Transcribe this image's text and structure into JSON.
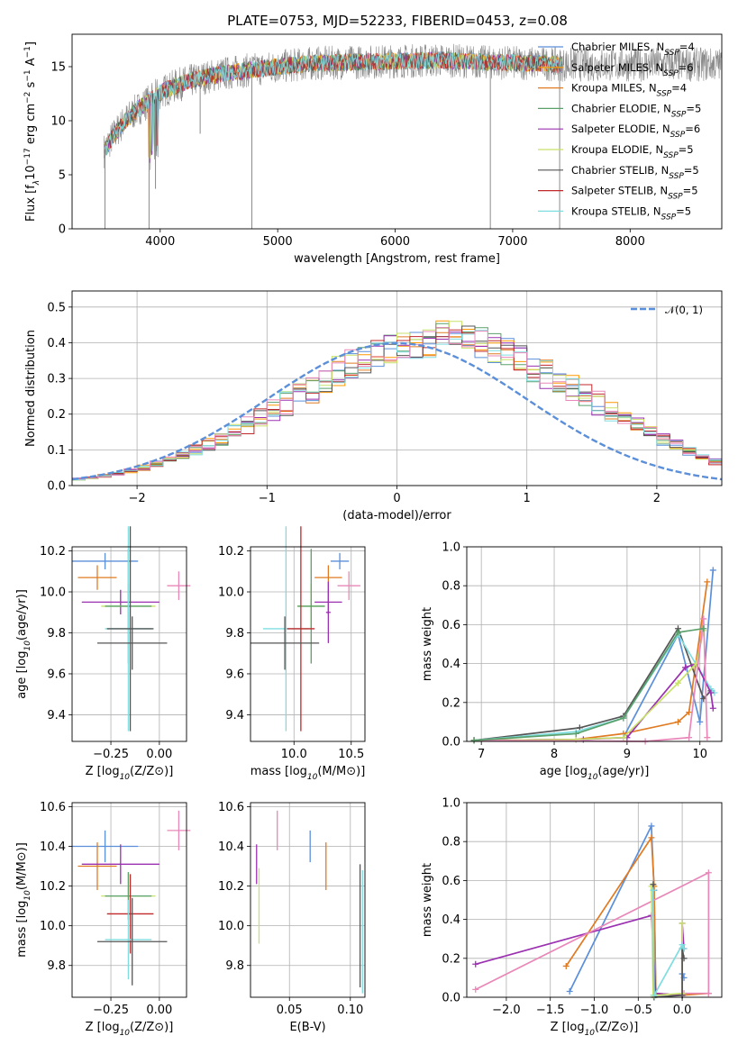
{
  "figure_title": "PLATE=0753, MJD=52233, FIBERID=0453, z=0.08",
  "colors": {
    "Chabrier MILES": "#5b8fd9",
    "Salpeter MILES": "#ff9900",
    "Kroupa MILES": "#e07b23",
    "Chabrier ELODIE": "#5aa06b",
    "Salpeter ELODIE": "#9b30b0",
    "Kroupa ELODIE": "#c8e26a",
    "Chabrier STELIB": "#555555",
    "Salpeter STELIB": "#c0282a",
    "Kroupa STELIB": "#7fdde0",
    "data": "#8a8a8a",
    "gaussian": "#5b8fd9",
    "extra_pink": "#e887b8"
  },
  "chart_data": [
    {
      "id": "spectrum",
      "type": "line",
      "title": "PLATE=0753, MJD=52233, FIBERID=0453, z=0.08",
      "xlabel": "wavelength [Angstrom, rest frame]",
      "ylabel_parts": [
        "Flux [f",
        "λ",
        "10",
        "−17",
        " erg cm",
        "−2",
        " s",
        "−1",
        " A",
        "−1",
        "]"
      ],
      "xlim": [
        3250,
        8780
      ],
      "ylim": [
        0,
        18
      ],
      "xticks": [
        "4000",
        "5000",
        "6000",
        "7000",
        "8000"
      ],
      "xtick_values": [
        4000,
        5000,
        6000,
        7000,
        8000
      ],
      "yticks": [
        "0",
        "5",
        "10",
        "15"
      ],
      "ytick_values": [
        0,
        5,
        10,
        15
      ],
      "grid": false,
      "legend_position": "top-right",
      "continuum": {
        "x": [
          3520,
          3600,
          3700,
          3800,
          3900,
          4000,
          4100,
          4200,
          4300,
          4500,
          4700,
          5000,
          5300,
          5600,
          6000,
          6400,
          6800,
          7200,
          7420
        ],
        "y": [
          7.2,
          8.6,
          10.0,
          11.0,
          11.8,
          12.6,
          13.1,
          13.5,
          13.8,
          14.3,
          14.6,
          15.0,
          15.3,
          15.4,
          15.5,
          15.6,
          15.4,
          15.3,
          15.2
        ]
      },
      "absorption_spikes": [
        {
          "x": 3530,
          "y": 0
        },
        {
          "x": 3905,
          "y": 0
        },
        {
          "x": 3960,
          "y": 3.7
        },
        {
          "x": 4340,
          "y": 8.8
        },
        {
          "x": 4780,
          "y": 0
        },
        {
          "x": 6810,
          "y": 0
        },
        {
          "x": 7400,
          "y": 0
        }
      ],
      "series": [
        {
          "name_parts": [
            "Chabrier MILES, N",
            "SSP",
            "=4"
          ],
          "color": "#5b8fd9"
        },
        {
          "name_parts": [
            "Salpeter MILES, N",
            "SSP",
            "=6"
          ],
          "color": "#ff9900"
        },
        {
          "name_parts": [
            "Kroupa MILES, N",
            "SSP",
            "=4"
          ],
          "color": "#e07b23"
        },
        {
          "name_parts": [
            "Chabrier ELODIE, N",
            "SSP",
            "=5"
          ],
          "color": "#5aa06b"
        },
        {
          "name_parts": [
            "Salpeter ELODIE, N",
            "SSP",
            "=6"
          ],
          "color": "#9b30b0"
        },
        {
          "name_parts": [
            "Kroupa ELODIE, N",
            "SSP",
            "=5"
          ],
          "color": "#c8e26a"
        },
        {
          "name_parts": [
            "Chabrier STELIB, N",
            "SSP",
            "=5"
          ],
          "color": "#555555"
        },
        {
          "name_parts": [
            "Salpeter STELIB, N",
            "SSP",
            "=5"
          ],
          "color": "#c0282a"
        },
        {
          "name_parts": [
            "Kroupa STELIB, N",
            "SSP",
            "=5"
          ],
          "color": "#7fdde0"
        }
      ]
    },
    {
      "id": "residuals",
      "type": "histogram",
      "xlabel": "(data-model)/error",
      "ylabel": "Normed distribution",
      "xlim": [
        -2.5,
        2.5
      ],
      "ylim": [
        0,
        0.545
      ],
      "xticks": [
        "−2",
        "−1",
        "0",
        "1",
        "2"
      ],
      "xtick_values": [
        -2,
        -1,
        0,
        1,
        2
      ],
      "yticks": [
        "0.0",
        "0.1",
        "0.2",
        "0.3",
        "0.4",
        "0.5"
      ],
      "ytick_values": [
        0,
        0.1,
        0.2,
        0.3,
        0.4,
        0.5
      ],
      "grid": true,
      "legend_position": "top-right",
      "legend_label": "𝒩(0, 1)",
      "bin_start": -2.5,
      "bin_width": 0.1,
      "base_values": [
        0.018,
        0.022,
        0.027,
        0.034,
        0.041,
        0.05,
        0.06,
        0.072,
        0.086,
        0.1,
        0.115,
        0.132,
        0.15,
        0.17,
        0.19,
        0.21,
        0.23,
        0.25,
        0.27,
        0.295,
        0.32,
        0.34,
        0.355,
        0.37,
        0.38,
        0.39,
        0.398,
        0.4,
        0.42,
        0.43,
        0.415,
        0.4,
        0.385,
        0.37,
        0.35,
        0.33,
        0.31,
        0.29,
        0.27,
        0.25,
        0.23,
        0.21,
        0.19,
        0.17,
        0.15,
        0.13,
        0.112,
        0.095,
        0.08,
        0.067
      ],
      "series_colors": [
        "#5b8fd9",
        "#ff9900",
        "#e07b23",
        "#5aa06b",
        "#9b30b0",
        "#c8e26a",
        "#555555",
        "#c0282a",
        "#7fdde0",
        "#e887b8"
      ],
      "gaussian_color": "#5b8fd9"
    },
    {
      "id": "age_vs_Z",
      "type": "errorbar",
      "xlabel": "Z [log10(Z/Z⊙)]",
      "ylabel": "age  [log10(age/yr)]",
      "xlim": [
        -0.45,
        0.14
      ],
      "ylim": [
        9.27,
        10.22
      ],
      "xticks": [
        "−0.25",
        "0.00"
      ],
      "xtick_values": [
        -0.25,
        0
      ],
      "yticks": [
        "9.4",
        "9.6",
        "9.8",
        "10.0",
        "10.2"
      ],
      "ytick_values": [
        9.4,
        9.6,
        9.8,
        10.0,
        10.2
      ],
      "grid": true,
      "points": [
        {
          "x": -0.28,
          "xerr": 0.17,
          "y": 10.15,
          "yerr": 0.04,
          "color": "#5b8fd9"
        },
        {
          "x": -0.32,
          "xerr": 0.1,
          "y": 10.07,
          "yerr": 0.06,
          "color": "#e07b23"
        },
        {
          "x": 0.1,
          "xerr": 0.06,
          "y": 10.03,
          "yerr": 0.07,
          "color": "#e887b8"
        },
        {
          "x": -0.2,
          "xerr": 0.2,
          "y": 9.95,
          "yerr": 0.06,
          "color": "#9b30b0"
        },
        {
          "x": -0.16,
          "xerr": 0.14,
          "y": 9.93,
          "yerr": 0.11,
          "color": "#c8e26a"
        },
        {
          "x": -0.16,
          "xerr": 0.12,
          "y": 9.93,
          "yerr": 0.28,
          "color": "#5aa06b"
        },
        {
          "x": -0.16,
          "xerr": 0.12,
          "y": 9.82,
          "yerr": 0.5,
          "color": "#7fdde0"
        },
        {
          "x": -0.15,
          "xerr": 0.12,
          "y": 9.82,
          "yerr": 0.5,
          "color": "#555555"
        },
        {
          "x": -0.14,
          "xerr": 0.18,
          "y": 9.75,
          "yerr": 0.13,
          "color": "#555555"
        }
      ]
    },
    {
      "id": "age_vs_mass",
      "type": "errorbar",
      "xlabel": "mass [log10(M/M⊙)]",
      "ylabel": "",
      "xlim": [
        9.62,
        10.62
      ],
      "ylim": [
        9.27,
        10.22
      ],
      "xticks": [
        "10.0",
        "10.5"
      ],
      "xtick_values": [
        10.0,
        10.5
      ],
      "yticks": [
        "9.4",
        "9.6",
        "9.8",
        "10.0",
        "10.2"
      ],
      "ytick_values": [
        9.4,
        9.6,
        9.8,
        10.0,
        10.2
      ],
      "grid": true,
      "points": [
        {
          "x": 10.4,
          "xerr": 0.08,
          "y": 10.15,
          "yerr": 0.04,
          "color": "#5b8fd9"
        },
        {
          "x": 10.3,
          "xerr": 0.12,
          "y": 10.07,
          "yerr": 0.06,
          "color": "#e07b23"
        },
        {
          "x": 10.48,
          "xerr": 0.1,
          "y": 10.03,
          "yerr": 0.07,
          "color": "#e887b8"
        },
        {
          "x": 10.3,
          "xerr": 0.12,
          "y": 9.95,
          "yerr": 0.06,
          "color": "#9b30b0"
        },
        {
          "x": 10.15,
          "xerr": 0.12,
          "y": 9.93,
          "yerr": 0.11,
          "color": "#c8e26a"
        },
        {
          "x": 10.15,
          "xerr": 0.12,
          "y": 9.93,
          "yerr": 0.28,
          "color": "#5aa06b"
        },
        {
          "x": 9.93,
          "xerr": 0.2,
          "y": 9.82,
          "yerr": 0.5,
          "color": "#7fdde0"
        },
        {
          "x": 10.06,
          "xerr": 0.12,
          "y": 9.82,
          "yerr": 0.5,
          "color": "#c0282a"
        },
        {
          "x": 9.92,
          "xerr": 0.3,
          "y": 9.75,
          "yerr": 0.13,
          "color": "#555555"
        },
        {
          "x": 10.3,
          "xerr": 0.02,
          "y": 9.9,
          "yerr": 0.15,
          "color": "#9b30b0"
        }
      ]
    },
    {
      "id": "mass_weight_vs_age",
      "type": "line",
      "xlabel": "age  [log10(age/yr)]",
      "ylabel": "mass weight",
      "xlim": [
        6.8,
        10.3
      ],
      "ylim": [
        0,
        1
      ],
      "xticks": [
        "7",
        "8",
        "9",
        "10"
      ],
      "xtick_values": [
        7,
        8,
        9,
        10
      ],
      "yticks": [
        "0.0",
        "0.2",
        "0.4",
        "0.6",
        "0.8",
        "1.0"
      ],
      "ytick_values": [
        0,
        0.2,
        0.4,
        0.6,
        0.8,
        1.0
      ],
      "grid": true,
      "series": [
        {
          "color": "#5b8fd9",
          "x": [
            6.9,
            8.3,
            8.95,
            9.7,
            10.0,
            10.18
          ],
          "y": [
            0.005,
            0.01,
            0.02,
            0.55,
            0.1,
            0.88
          ]
        },
        {
          "color": "#e07b23",
          "x": [
            6.9,
            8.3,
            8.95,
            9.7,
            9.85,
            10.1
          ],
          "y": [
            0.005,
            0.01,
            0.04,
            0.1,
            0.15,
            0.82
          ]
        },
        {
          "color": "#555555",
          "x": [
            6.9,
            8.35,
            8.95,
            9.7,
            10.05,
            10.15
          ],
          "y": [
            0.005,
            0.07,
            0.13,
            0.58,
            0.22,
            0.26
          ]
        },
        {
          "color": "#7fdde0",
          "x": [
            6.9,
            8.3,
            8.95,
            9.7,
            10.15,
            10.2
          ],
          "y": [
            0.005,
            0.05,
            0.12,
            0.55,
            0.27,
            0.25
          ]
        },
        {
          "color": "#9b30b0",
          "x": [
            6.9,
            8.4,
            9.0,
            9.8,
            9.95,
            10.15,
            10.18
          ],
          "y": [
            0.005,
            0.01,
            0.02,
            0.38,
            0.4,
            0.25,
            0.17
          ]
        },
        {
          "color": "#c8e26a",
          "x": [
            6.9,
            8.3,
            8.95,
            9.7,
            9.95,
            10.05
          ],
          "y": [
            0.005,
            0.01,
            0.02,
            0.3,
            0.4,
            0.57
          ]
        },
        {
          "color": "#e887b8",
          "x": [
            6.9,
            9.25,
            9.85,
            10.05,
            10.1
          ],
          "y": [
            0.005,
            0.0,
            0.02,
            0.63,
            0.02
          ]
        },
        {
          "color": "#5aa06b",
          "x": [
            6.9,
            8.3,
            8.95,
            9.7,
            10.05
          ],
          "y": [
            0.005,
            0.04,
            0.12,
            0.56,
            0.58
          ]
        }
      ]
    },
    {
      "id": "mass_vs_Z",
      "type": "errorbar",
      "xlabel": "Z [log10(Z/Z⊙)]",
      "ylabel": "mass [log10(M/M⊙)]",
      "xlim": [
        -0.45,
        0.14
      ],
      "ylim": [
        9.64,
        10.62
      ],
      "xticks": [
        "−0.25",
        "0.00"
      ],
      "xtick_values": [
        -0.25,
        0
      ],
      "yticks": [
        "9.8",
        "10.0",
        "10.2",
        "10.4",
        "10.6"
      ],
      "ytick_values": [
        9.8,
        10.0,
        10.2,
        10.4,
        10.6
      ],
      "grid": true,
      "points": [
        {
          "x": 0.1,
          "xerr": 0.06,
          "y": 10.48,
          "yerr": 0.1,
          "color": "#e887b8"
        },
        {
          "x": -0.28,
          "xerr": 0.17,
          "y": 10.4,
          "yerr": 0.08,
          "color": "#5b8fd9"
        },
        {
          "x": -0.32,
          "xerr": 0.1,
          "y": 10.3,
          "yerr": 0.12,
          "color": "#e07b23"
        },
        {
          "x": -0.2,
          "xerr": 0.2,
          "y": 10.31,
          "yerr": 0.1,
          "color": "#9b30b0"
        },
        {
          "x": -0.16,
          "xerr": 0.14,
          "y": 10.15,
          "yerr": 0.12,
          "color": "#c8e26a"
        },
        {
          "x": -0.16,
          "xerr": 0.12,
          "y": 10.15,
          "yerr": 0.12,
          "color": "#5aa06b"
        },
        {
          "x": -0.15,
          "xerr": 0.12,
          "y": 10.06,
          "yerr": 0.2,
          "color": "#c0282a"
        },
        {
          "x": -0.16,
          "xerr": 0.12,
          "y": 9.93,
          "yerr": 0.2,
          "color": "#7fdde0"
        },
        {
          "x": -0.14,
          "xerr": 0.18,
          "y": 9.92,
          "yerr": 0.22,
          "color": "#555555"
        }
      ]
    },
    {
      "id": "mass_vs_ebv",
      "type": "errorbar",
      "xlabel": "E(B-V)",
      "ylabel": "",
      "xlim": [
        0.018,
        0.112
      ],
      "ylim": [
        9.64,
        10.62
      ],
      "xticks": [
        "0.05",
        "0.10"
      ],
      "xtick_values": [
        0.05,
        0.1
      ],
      "yticks": [
        "9.8",
        "10.0",
        "10.2",
        "10.4",
        "10.6"
      ],
      "ytick_values": [
        9.8,
        10.0,
        10.2,
        10.4,
        10.6
      ],
      "grid": true,
      "points": [
        {
          "x": 0.04,
          "xerr": 0,
          "y": 10.48,
          "yerr": 0.1,
          "color": "#e887b8"
        },
        {
          "x": 0.067,
          "xerr": 0,
          "y": 10.4,
          "yerr": 0.08,
          "color": "#5b8fd9"
        },
        {
          "x": 0.08,
          "xerr": 0,
          "y": 10.3,
          "yerr": 0.12,
          "color": "#e07b23"
        },
        {
          "x": 0.023,
          "xerr": 0,
          "y": 10.31,
          "yerr": 0.1,
          "color": "#9b30b0"
        },
        {
          "x": 0.025,
          "xerr": 0,
          "y": 10.1,
          "yerr": 0.19,
          "color": "#c8e26a"
        },
        {
          "x": 0.108,
          "xerr": 0,
          "y": 10.0,
          "yerr": 0.31,
          "color": "#555555"
        },
        {
          "x": 0.11,
          "xerr": 0,
          "y": 9.97,
          "yerr": 0.31,
          "color": "#7fdde0"
        }
      ]
    },
    {
      "id": "mass_weight_vs_Z",
      "type": "line",
      "xlabel": "Z [log10(Z/Z⊙)]",
      "ylabel": "mass weight",
      "xlim": [
        -2.45,
        0.45
      ],
      "ylim": [
        0,
        1
      ],
      "xticks": [
        "−2.0",
        "−1.5",
        "−1.0",
        "−0.5",
        "0.0"
      ],
      "xtick_values": [
        -2.0,
        -1.5,
        -1.0,
        -0.5,
        0.0
      ],
      "yticks": [
        "0.0",
        "0.2",
        "0.4",
        "0.6",
        "0.8",
        "1.0"
      ],
      "ytick_values": [
        0,
        0.2,
        0.4,
        0.6,
        0.8,
        1.0
      ],
      "grid": true,
      "series": [
        {
          "color": "#5b8fd9",
          "x": [
            -1.28,
            -0.35,
            -0.32,
            -0.3,
            0.0,
            0.0,
            0.02
          ],
          "y": [
            0.03,
            0.88,
            0.55,
            0.02,
            0.01,
            0.12,
            0.1
          ]
        },
        {
          "color": "#e07b23",
          "x": [
            -1.32,
            -0.35,
            -0.32,
            -0.3,
            0.0,
            0.3
          ],
          "y": [
            0.16,
            0.82,
            0.57,
            0.02,
            0.01,
            0.02
          ]
        },
        {
          "color": "#9b30b0",
          "x": [
            -2.35,
            -0.35,
            -0.3,
            0.0,
            0.0,
            0.02
          ],
          "y": [
            0.17,
            0.42,
            0.02,
            0.01,
            0.38,
            0.25
          ]
        },
        {
          "color": "#e887b8",
          "x": [
            -2.35,
            0.3,
            0.3,
            0.02
          ],
          "y": [
            0.04,
            0.64,
            0.02,
            0.02
          ]
        },
        {
          "color": "#c8e26a",
          "x": [
            -0.35,
            -0.33,
            -0.3,
            0.0,
            0.0
          ],
          "y": [
            0.57,
            0.01,
            0.01,
            0.02,
            0.38
          ]
        },
        {
          "color": "#555555",
          "x": [
            -0.33,
            -0.32,
            0.0,
            0.0,
            0.02
          ],
          "y": [
            0.58,
            0.0,
            0.01,
            0.25,
            0.2
          ]
        },
        {
          "color": "#7fdde0",
          "x": [
            -0.33,
            -0.32,
            0.0,
            0.02
          ],
          "y": [
            0.55,
            0.01,
            0.27,
            0.25
          ]
        }
      ]
    }
  ]
}
